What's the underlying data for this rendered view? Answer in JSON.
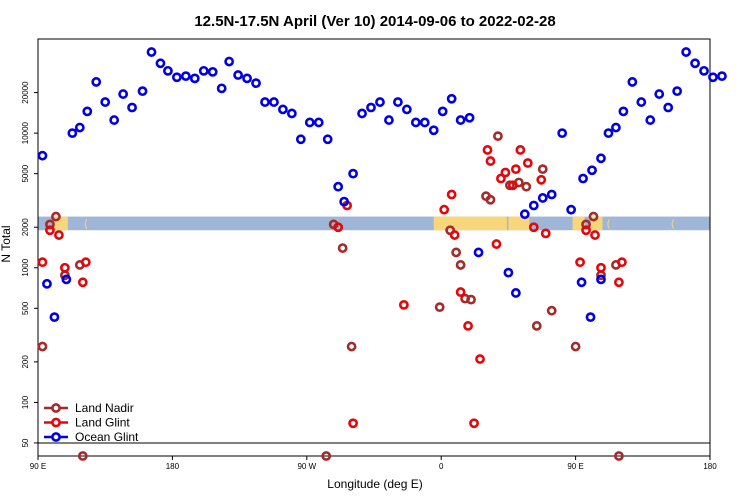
{
  "chart_data": {
    "type": "scatter",
    "title": "12.5N-17.5N April (Ver 10)   2014-09-06 to 2022-02-28",
    "xlabel": "Longitude (deg E)",
    "ylabel": "N Total",
    "x_ticks": [
      {
        "lon": 90,
        "label": "90 E"
      },
      {
        "lon": 180,
        "label": "180"
      },
      {
        "lon": 270,
        "label": "90 W"
      },
      {
        "lon": 360,
        "label": "0"
      },
      {
        "lon": 450,
        "label": "90 E"
      },
      {
        "lon": 540,
        "label": "180"
      }
    ],
    "xlim": [
      90,
      540
    ],
    "y_scale": "log",
    "ylim": [
      40,
      50000
    ],
    "y_ticks": [
      {
        "value": 50,
        "label": "50"
      },
      {
        "value": 100,
        "label": "100"
      },
      {
        "value": 200,
        "label": "200"
      },
      {
        "value": 500,
        "label": "500"
      },
      {
        "value": 1000,
        "label": "1000"
      },
      {
        "value": 2000,
        "label": "2000"
      },
      {
        "value": 5000,
        "label": "5000"
      },
      {
        "value": 10000,
        "label": "10000"
      },
      {
        "value": 20000,
        "label": "20000"
      }
    ],
    "reference_line_y": 50,
    "band": {
      "y_low": 1900,
      "y_high": 2400,
      "color": "#a0b6d8",
      "highlight_color": "#f7d77a"
    },
    "legend_position": "bottom-left",
    "series": [
      {
        "name": "Land Nadir",
        "color": "#a52a2a",
        "points": [
          [
            93,
            260
          ],
          [
            98,
            2100
          ],
          [
            102,
            2400
          ],
          [
            108,
            880
          ],
          [
            118,
            1050
          ],
          [
            120,
            40
          ],
          [
            283,
            40
          ],
          [
            288,
            2100
          ],
          [
            294,
            1400
          ],
          [
            300,
            260
          ],
          [
            359,
            510
          ],
          [
            366,
            1900
          ],
          [
            370,
            1300
          ],
          [
            373,
            1050
          ],
          [
            376,
            590
          ],
          [
            380,
            580
          ],
          [
            390,
            3400
          ],
          [
            393,
            3200
          ],
          [
            398,
            9500
          ],
          [
            406,
            4100
          ],
          [
            412,
            4300
          ],
          [
            417,
            4000
          ],
          [
            424,
            370
          ],
          [
            428,
            5400
          ],
          [
            434,
            480
          ],
          [
            450,
            260
          ],
          [
            457,
            2100
          ],
          [
            462,
            2400
          ],
          [
            467,
            880
          ],
          [
            477,
            1050
          ],
          [
            479,
            40
          ]
        ]
      },
      {
        "name": "Land Glint",
        "color": "#e8050a",
        "points": [
          [
            93,
            1100
          ],
          [
            98,
            1900
          ],
          [
            104,
            1750
          ],
          [
            108,
            1000
          ],
          [
            120,
            780
          ],
          [
            122,
            1100
          ],
          [
            291,
            2000
          ],
          [
            297,
            2900
          ],
          [
            301,
            70
          ],
          [
            335,
            530
          ],
          [
            362,
            2700
          ],
          [
            367,
            3500
          ],
          [
            369,
            1750
          ],
          [
            373,
            660
          ],
          [
            378,
            370
          ],
          [
            382,
            70
          ],
          [
            386,
            210
          ],
          [
            391,
            7500
          ],
          [
            393,
            6200
          ],
          [
            397,
            1500
          ],
          [
            400,
            4600
          ],
          [
            403,
            5100
          ],
          [
            408,
            4100
          ],
          [
            410,
            5400
          ],
          [
            413,
            7500
          ],
          [
            418,
            6000
          ],
          [
            422,
            2000
          ],
          [
            427,
            4500
          ],
          [
            430,
            1800
          ],
          [
            453,
            1100
          ],
          [
            457,
            1900
          ],
          [
            463,
            1750
          ],
          [
            467,
            1000
          ],
          [
            479,
            780
          ],
          [
            481,
            1100
          ]
        ]
      },
      {
        "name": "Ocean Glint",
        "color": "#0000e6",
        "points": [
          [
            93,
            6800
          ],
          [
            96,
            760
          ],
          [
            101,
            430
          ],
          [
            109,
            820
          ],
          [
            113,
            10000
          ],
          [
            118,
            11000
          ],
          [
            123,
            14500
          ],
          [
            129,
            24000
          ],
          [
            135,
            17000
          ],
          [
            141,
            12500
          ],
          [
            147,
            19500
          ],
          [
            153,
            15500
          ],
          [
            160,
            20500
          ],
          [
            166,
            40000
          ],
          [
            172,
            33000
          ],
          [
            177,
            29000
          ],
          [
            183,
            26000
          ],
          [
            189,
            26500
          ],
          [
            195,
            25500
          ],
          [
            201,
            29000
          ],
          [
            207,
            28500
          ],
          [
            213,
            21500
          ],
          [
            218,
            34000
          ],
          [
            224,
            27000
          ],
          [
            230,
            25500
          ],
          [
            236,
            23500
          ],
          [
            242,
            17000
          ],
          [
            248,
            17000
          ],
          [
            254,
            15000
          ],
          [
            260,
            14000
          ],
          [
            266,
            9000
          ],
          [
            272,
            12000
          ],
          [
            278,
            12000
          ],
          [
            284,
            9000
          ],
          [
            291,
            4000
          ],
          [
            295,
            3100
          ],
          [
            301,
            5000
          ],
          [
            307,
            14000
          ],
          [
            313,
            15500
          ],
          [
            319,
            17000
          ],
          [
            325,
            12500
          ],
          [
            331,
            17000
          ],
          [
            337,
            15000
          ],
          [
            343,
            12000
          ],
          [
            349,
            12000
          ],
          [
            355,
            10500
          ],
          [
            361,
            14500
          ],
          [
            367,
            18000
          ],
          [
            373,
            12500
          ],
          [
            379,
            13000
          ],
          [
            385,
            1300
          ],
          [
            405,
            920
          ],
          [
            410,
            650
          ],
          [
            416,
            2500
          ],
          [
            422,
            2900
          ],
          [
            428,
            3300
          ],
          [
            434,
            3500
          ],
          [
            441,
            10000
          ],
          [
            447,
            2700
          ],
          [
            455,
            4600
          ],
          [
            461,
            5300
          ],
          [
            467,
            6500
          ],
          [
            454,
            780
          ],
          [
            460,
            430
          ],
          [
            467,
            820
          ],
          [
            472,
            10000
          ],
          [
            477,
            11000
          ],
          [
            482,
            14500
          ],
          [
            488,
            24000
          ],
          [
            494,
            17000
          ],
          [
            500,
            12500
          ],
          [
            506,
            19500
          ],
          [
            512,
            15500
          ],
          [
            518,
            20500
          ],
          [
            524,
            40000
          ],
          [
            530,
            33000
          ],
          [
            536,
            29000
          ],
          [
            542,
            26000
          ],
          [
            548,
            26500
          ]
        ]
      }
    ]
  }
}
